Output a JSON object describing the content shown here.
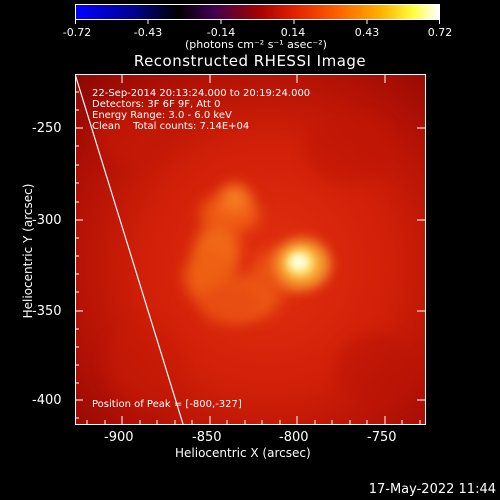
{
  "colorbar": {
    "tick_labels": [
      "-0.72",
      "-0.43",
      "-0.14",
      "0.14",
      "0.43",
      "0.72"
    ],
    "units": "(photons cm⁻² s⁻¹ asec⁻²)",
    "colors": [
      "#0000ff",
      "#000000",
      "#c00000",
      "#ff6000",
      "#ffff00",
      "#ffffff"
    ]
  },
  "title": "Reconstructed RHESSI Image",
  "info": {
    "line1": "22-Sep-2014 20:13:24.000 to 20:19:24.000",
    "line2": "Detectors: 3F 6F 9F, Att 0",
    "line3": "Energy Range: 3.0 - 6.0 keV",
    "line4": "Clean    Total counts: 7.14E+04",
    "peak": "Position of Peak = [-800,-327]"
  },
  "axes": {
    "xlabel": "Heliocentric X (arcsec)",
    "ylabel": "Heliocentric Y (arcsec)",
    "x_ticks": [
      "-900",
      "-850",
      "-800",
      "-750"
    ],
    "y_ticks": [
      "-250",
      "-300",
      "-350",
      "-400"
    ],
    "x_range": [
      -925,
      -725
    ],
    "y_range": [
      -410,
      -230
    ]
  },
  "timestamp": "17-May-2022 11:44"
}
